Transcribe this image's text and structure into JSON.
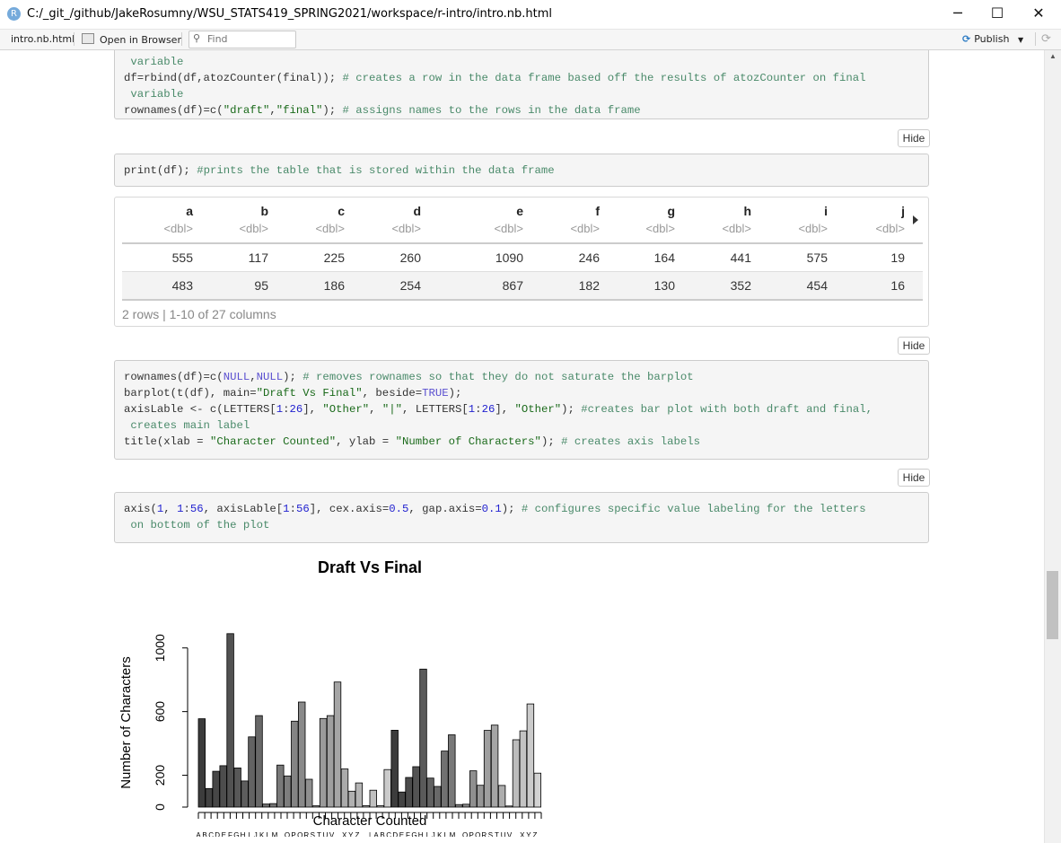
{
  "window": {
    "app_icon": "R",
    "title": "C:/_git_/github/JakeRosumny/WSU_STATS419_SPRING2021/workspace/r-intro/intro.nb.html",
    "controls": {
      "minimize": "─",
      "maximize": "☐",
      "close": "✕"
    }
  },
  "toolbar": {
    "tab": "intro.nb.html",
    "open_in_browser": "Open in Browser",
    "find_placeholder": "Find",
    "publish": "Publish",
    "publish_icon": "publish-icon",
    "refresh_icon": "refresh-icon"
  },
  "cells": {
    "cell1": {
      "lines": [
        [
          {
            "t": " variable",
            "c": "cm"
          }
        ],
        [
          {
            "t": "df=rbind(df,atozCounter(final)); ",
            "c": ""
          },
          {
            "t": "# creates a row in the data frame based off the results of atozCounter on final",
            "c": "cm"
          }
        ],
        [
          {
            "t": " variable",
            "c": "cm"
          }
        ],
        [
          {
            "t": "rownames(df)=c(",
            "c": ""
          },
          {
            "t": "\"draft\"",
            "c": "st"
          },
          {
            "t": ",",
            "c": ""
          },
          {
            "t": "\"final\"",
            "c": "st"
          },
          {
            "t": "); ",
            "c": ""
          },
          {
            "t": "# assigns names to the rows in the data frame",
            "c": "cm"
          }
        ]
      ]
    },
    "hide_label": "Hide",
    "cell2": {
      "lines": [
        [
          {
            "t": "print(df); ",
            "c": ""
          },
          {
            "t": "#prints the table that is stored within the data frame",
            "c": "cm"
          }
        ]
      ]
    },
    "cell3": {
      "lines": [
        [
          {
            "t": "rownames(df)=c(",
            "c": ""
          },
          {
            "t": "NULL",
            "c": "kw"
          },
          {
            "t": ",",
            "c": ""
          },
          {
            "t": "NULL",
            "c": "kw"
          },
          {
            "t": "); ",
            "c": ""
          },
          {
            "t": "# removes rownames so that they do not saturate the barplot",
            "c": "cm"
          }
        ],
        [
          {
            "t": "barplot(t(df), main=",
            "c": ""
          },
          {
            "t": "\"Draft Vs Final\"",
            "c": "st"
          },
          {
            "t": ", beside=",
            "c": ""
          },
          {
            "t": "TRUE",
            "c": "kw"
          },
          {
            "t": ");",
            "c": ""
          }
        ],
        [
          {
            "t": "axisLable <- c(LETTERS[",
            "c": ""
          },
          {
            "t": "1",
            "c": "nu"
          },
          {
            "t": ":",
            "c": ""
          },
          {
            "t": "26",
            "c": "nu"
          },
          {
            "t": "], ",
            "c": ""
          },
          {
            "t": "\"Other\"",
            "c": "st"
          },
          {
            "t": ", ",
            "c": ""
          },
          {
            "t": "\"|\"",
            "c": "st"
          },
          {
            "t": ", LETTERS[",
            "c": ""
          },
          {
            "t": "1",
            "c": "nu"
          },
          {
            "t": ":",
            "c": ""
          },
          {
            "t": "26",
            "c": "nu"
          },
          {
            "t": "], ",
            "c": ""
          },
          {
            "t": "\"Other\"",
            "c": "st"
          },
          {
            "t": "); ",
            "c": ""
          },
          {
            "t": "#creates bar plot with both draft and final,",
            "c": "cm"
          }
        ],
        [
          {
            "t": " creates main label",
            "c": "cm"
          }
        ],
        [
          {
            "t": "title(xlab = ",
            "c": ""
          },
          {
            "t": "\"Character Counted\"",
            "c": "st"
          },
          {
            "t": ", ylab = ",
            "c": ""
          },
          {
            "t": "\"Number of Characters\"",
            "c": "st"
          },
          {
            "t": "); ",
            "c": ""
          },
          {
            "t": "# creates axis labels",
            "c": "cm"
          }
        ]
      ]
    },
    "cell4": {
      "lines": [
        [
          {
            "t": "axis(",
            "c": ""
          },
          {
            "t": "1",
            "c": "nu"
          },
          {
            "t": ", ",
            "c": ""
          },
          {
            "t": "1",
            "c": "nu"
          },
          {
            "t": ":",
            "c": ""
          },
          {
            "t": "56",
            "c": "nu"
          },
          {
            "t": ", axisLable[",
            "c": ""
          },
          {
            "t": "1",
            "c": "nu"
          },
          {
            "t": ":",
            "c": ""
          },
          {
            "t": "56",
            "c": "nu"
          },
          {
            "t": "], cex.axis=",
            "c": ""
          },
          {
            "t": "0.5",
            "c": "nu"
          },
          {
            "t": ", gap.axis=",
            "c": ""
          },
          {
            "t": "0.1",
            "c": "nu"
          },
          {
            "t": "); ",
            "c": ""
          },
          {
            "t": "# configures specific value labeling for the letters",
            "c": "cm"
          }
        ],
        [
          {
            "t": " on bottom of the plot",
            "c": "cm"
          }
        ]
      ]
    }
  },
  "table": {
    "columns": [
      "a",
      "b",
      "c",
      "d",
      "e",
      "f",
      "g",
      "h",
      "i",
      "j"
    ],
    "type_label": "<dbl>",
    "rows": [
      [
        "555",
        "117",
        "225",
        "260",
        "1090",
        "246",
        "164",
        "441",
        "575",
        "19"
      ],
      [
        "483",
        "95",
        "186",
        "254",
        "867",
        "182",
        "130",
        "352",
        "454",
        "16"
      ]
    ],
    "footer": "2 rows | 1-10 of 27 columns"
  },
  "chart_data": {
    "type": "bar",
    "title": "Draft Vs Final",
    "xlabel": "Character Counted",
    "ylabel": "Number of Characters",
    "ylim": [
      0,
      1100
    ],
    "yticks": [
      0,
      200,
      600,
      1000
    ],
    "tick_labels": [
      "A",
      "B",
      "C",
      "D",
      "E",
      "F",
      "G",
      "H",
      "I",
      "J",
      "K",
      "L",
      "M",
      "",
      "O",
      "P",
      "Q",
      "R",
      "S",
      "T",
      "U",
      "V",
      "",
      "X",
      "Y",
      "Z",
      "",
      "|",
      "A",
      "B",
      "C",
      "D",
      "E",
      "F",
      "G",
      "H",
      "I",
      "J",
      "K",
      "L",
      "M",
      "",
      "O",
      "P",
      "Q",
      "R",
      "S",
      "T",
      "U",
      "V",
      "",
      "X",
      "Y",
      "Z",
      ""
    ],
    "series": [
      {
        "values": [
          555,
          117,
          225,
          260,
          1090,
          246,
          164,
          441,
          575,
          19,
          22,
          264,
          196,
          540,
          660,
          175,
          8,
          557,
          575,
          786,
          240,
          100,
          152,
          9,
          106,
          9,
          236,
          483,
          95,
          186,
          254,
          867,
          182,
          130,
          352,
          454,
          16,
          18,
          228,
          137,
          482,
          515,
          136,
          7,
          423,
          479,
          648,
          213
        ]
      },
      {
        "values": [
          483,
          95,
          186,
          254,
          867,
          182,
          130,
          352,
          454,
          16,
          18,
          228,
          137,
          482,
          515,
          136,
          7,
          423,
          479,
          648,
          213,
          82,
          95,
          9,
          80,
          10,
          165,
          0,
          0,
          0,
          0,
          0,
          0,
          0,
          0,
          0,
          0,
          0,
          0,
          0,
          0,
          0,
          0,
          0,
          0,
          0,
          0,
          0
        ]
      }
    ]
  }
}
